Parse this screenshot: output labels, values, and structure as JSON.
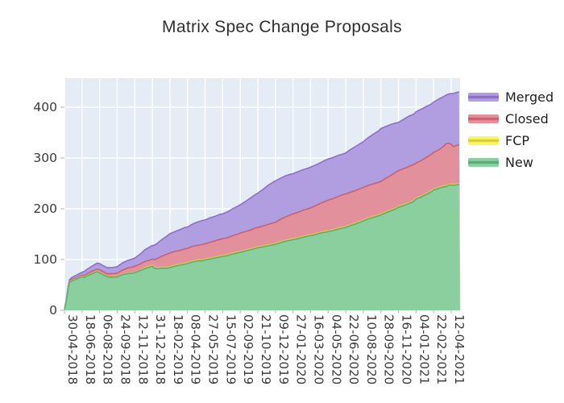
{
  "title": "Matrix Spec Change Proposals",
  "chart_data": {
    "type": "area",
    "stacked": true,
    "title": "Matrix Spec Change Proposals",
    "xlabel": "",
    "ylabel": "",
    "plot_bg": "#e5ecf6",
    "grid_color": "#ffffff",
    "tick_text_color": "#3b3b3b",
    "y_ticks": [
      0,
      100,
      200,
      300,
      400
    ],
    "ylim": [
      0,
      457
    ],
    "grid": true,
    "x_tick_labels": [
      "30-04-2018",
      "18-06-2018",
      "06-08-2018",
      "24-09-2018",
      "12-11-2018",
      "31-12-2018",
      "18-02-2019",
      "08-04-2019",
      "27-05-2019",
      "15-07-2019",
      "02-09-2019",
      "21-10-2019",
      "09-12-2019",
      "27-01-2020",
      "16-03-2020",
      "04-05-2020",
      "22-06-2020",
      "10-08-2020",
      "28-09-2020",
      "16-11-2020",
      "04-01-2021",
      "22-02-2021",
      "12-04-2021"
    ],
    "x_tick_interval_days": 49,
    "x_domain_days": [
      0,
      1100
    ],
    "legend": [
      {
        "label": "Merged",
        "fill": "#b19ee1",
        "line": "#8d6fc9"
      },
      {
        "label": "Closed",
        "fill": "#e2919c",
        "line": "#cb6070"
      },
      {
        "label": "FCP",
        "fill": "#faf75e",
        "line": "#d9cf3a"
      },
      {
        "label": "New",
        "fill": "#8ccf9e",
        "line": "#5dab7d"
      }
    ],
    "series_order_bottom_to_top": [
      "New",
      "FCP",
      "Closed",
      "Merged"
    ],
    "points_format": [
      "days_since_30-04-2018",
      "New",
      "FCP",
      "Closed",
      "Merged"
    ],
    "points": [
      [
        0,
        2,
        0,
        0,
        0
      ],
      [
        5,
        18,
        0,
        1,
        1
      ],
      [
        10,
        42,
        1,
        1,
        2
      ],
      [
        14,
        55,
        1,
        1,
        3
      ],
      [
        21,
        58,
        1,
        2,
        4
      ],
      [
        35,
        62,
        1,
        2,
        5
      ],
      [
        49,
        66,
        1,
        2,
        6
      ],
      [
        56,
        65,
        1,
        3,
        8
      ],
      [
        63,
        68,
        1,
        3,
        9
      ],
      [
        77,
        72,
        1,
        4,
        10
      ],
      [
        91,
        76,
        1,
        4,
        12
      ],
      [
        98,
        74,
        1,
        5,
        12
      ],
      [
        105,
        71,
        1,
        5,
        12
      ],
      [
        119,
        66,
        1,
        5,
        12
      ],
      [
        133,
        65,
        1,
        6,
        12
      ],
      [
        147,
        66,
        1,
        6,
        13
      ],
      [
        161,
        70,
        1,
        8,
        14
      ],
      [
        175,
        72,
        1,
        10,
        15
      ],
      [
        189,
        73,
        1,
        11,
        16
      ],
      [
        196,
        74,
        1,
        12,
        16
      ],
      [
        210,
        78,
        1,
        12,
        19
      ],
      [
        224,
        82,
        2,
        12,
        23
      ],
      [
        238,
        85,
        2,
        12,
        26
      ],
      [
        245,
        87,
        2,
        12,
        27
      ],
      [
        250,
        83,
        2,
        15,
        28
      ],
      [
        259,
        82,
        2,
        18,
        30
      ],
      [
        273,
        83,
        2,
        22,
        33
      ],
      [
        287,
        83,
        2,
        26,
        36
      ],
      [
        294,
        84,
        2,
        27,
        38
      ],
      [
        308,
        87,
        2,
        27,
        39
      ],
      [
        322,
        89,
        2,
        27,
        41
      ],
      [
        336,
        91,
        2,
        28,
        42
      ],
      [
        343,
        92,
        2,
        28,
        42
      ],
      [
        357,
        95,
        2,
        29,
        44
      ],
      [
        371,
        97,
        2,
        29,
        46
      ],
      [
        385,
        98,
        2,
        30,
        47
      ],
      [
        392,
        99,
        2,
        30,
        47
      ],
      [
        406,
        101,
        2,
        31,
        48
      ],
      [
        420,
        103,
        2,
        32,
        48
      ],
      [
        434,
        105,
        2,
        33,
        49
      ],
      [
        441,
        106,
        2,
        33,
        49
      ],
      [
        455,
        108,
        2,
        33,
        51
      ],
      [
        469,
        111,
        2,
        34,
        53
      ],
      [
        483,
        113,
        2,
        35,
        55
      ],
      [
        490,
        114,
        2,
        36,
        56
      ],
      [
        504,
        117,
        2,
        36,
        59
      ],
      [
        518,
        119,
        2,
        37,
        63
      ],
      [
        532,
        122,
        2,
        38,
        66
      ],
      [
        539,
        123,
        2,
        38,
        68
      ],
      [
        553,
        125,
        2,
        39,
        72
      ],
      [
        567,
        127,
        2,
        40,
        77
      ],
      [
        581,
        129,
        2,
        41,
        80
      ],
      [
        588,
        130,
        2,
        41,
        82
      ],
      [
        602,
        133,
        2,
        44,
        81
      ],
      [
        616,
        136,
        2,
        46,
        81
      ],
      [
        630,
        138,
        2,
        48,
        80
      ],
      [
        637,
        139,
        2,
        49,
        79
      ],
      [
        651,
        141,
        2,
        50,
        80
      ],
      [
        665,
        144,
        2,
        51,
        80
      ],
      [
        679,
        146,
        2,
        52,
        80
      ],
      [
        686,
        147,
        2,
        53,
        80
      ],
      [
        700,
        149,
        2,
        55,
        80
      ],
      [
        714,
        152,
        2,
        57,
        80
      ],
      [
        728,
        154,
        2,
        59,
        81
      ],
      [
        735,
        155,
        2,
        60,
        81
      ],
      [
        749,
        157,
        2,
        61,
        81
      ],
      [
        763,
        160,
        2,
        62,
        81
      ],
      [
        777,
        162,
        2,
        64,
        80
      ],
      [
        784,
        163,
        2,
        64,
        81
      ],
      [
        798,
        167,
        2,
        64,
        84
      ],
      [
        812,
        170,
        2,
        64,
        87
      ],
      [
        826,
        174,
        2,
        64,
        89
      ],
      [
        833,
        176,
        2,
        64,
        90
      ],
      [
        847,
        180,
        2,
        64,
        94
      ],
      [
        861,
        183,
        2,
        64,
        98
      ],
      [
        875,
        186,
        2,
        64,
        101
      ],
      [
        882,
        188,
        2,
        64,
        104
      ],
      [
        896,
        192,
        2,
        66,
        102
      ],
      [
        910,
        196,
        2,
        68,
        100
      ],
      [
        924,
        200,
        2,
        70,
        97
      ],
      [
        931,
        203,
        2,
        70,
        95
      ],
      [
        945,
        206,
        2,
        71,
        97
      ],
      [
        959,
        210,
        2,
        71,
        99
      ],
      [
        973,
        214,
        2,
        71,
        99
      ],
      [
        980,
        219,
        2,
        69,
        101
      ],
      [
        994,
        223,
        2,
        70,
        101
      ],
      [
        1008,
        228,
        2,
        71,
        100
      ],
      [
        1022,
        233,
        2,
        72,
        99
      ],
      [
        1029,
        237,
        2,
        72,
        99
      ],
      [
        1043,
        240,
        2,
        74,
        100
      ],
      [
        1057,
        243,
        2,
        78,
        98
      ],
      [
        1064,
        244,
        2,
        82,
        96
      ],
      [
        1071,
        246,
        2,
        81,
        97
      ],
      [
        1078,
        247,
        2,
        78,
        100
      ],
      [
        1085,
        246,
        2,
        74,
        105
      ],
      [
        1092,
        247,
        2,
        76,
        104
      ],
      [
        1100,
        248,
        2,
        76,
        104
      ]
    ]
  }
}
